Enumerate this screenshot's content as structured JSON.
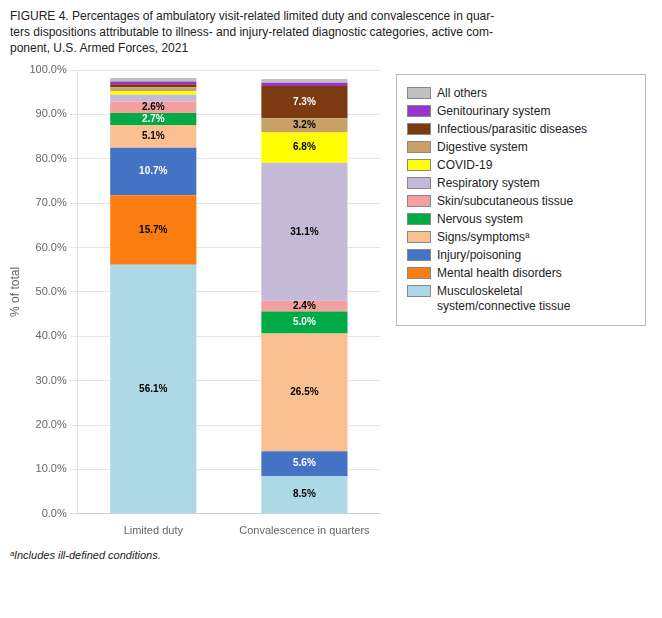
{
  "chart_data": {
    "type": "bar",
    "title": [
      "FIGURE 4. Percentages of ambulatory visit-related limited duty and convalescence in quar-",
      "ters dispositions attributable to illness- and injury-related diagnostic categories, active com-",
      "ponent, U.S. Armed Forces, 2021"
    ],
    "ylabel": "% of total",
    "footnote": "ᵃIncludes ill-defined conditions.",
    "categories": [
      "Limited duty",
      "Convalescence in quarters"
    ],
    "series": [
      {
        "name": "Musculoskeletal\nsystem/connective tissue",
        "color": "#add8e6",
        "values": [
          56.1,
          8.5
        ],
        "value_labels": [
          "56.1%",
          "8.5%"
        ]
      },
      {
        "name": "Mental health disorders",
        "color": "#f97d10",
        "values": [
          15.7,
          0.0
        ],
        "value_labels": [
          "15.7%",
          null
        ]
      },
      {
        "name": "Injury/poisoning",
        "color": "#4472c4",
        "values": [
          10.7,
          5.6
        ],
        "value_labels": [
          "10.7%",
          "5.6%"
        ]
      },
      {
        "name": "Signs/symptomsᵃ",
        "color": "#fac090",
        "values": [
          5.1,
          26.5
        ],
        "value_labels": [
          "5.1%",
          "26.5%"
        ]
      },
      {
        "name": "Nervous system",
        "color": "#00aa44",
        "values": [
          2.7,
          5.0
        ],
        "value_labels": [
          "2.7%",
          "5.0%"
        ]
      },
      {
        "name": "Skin/subcutaneous tissue",
        "color": "#f4a0a0",
        "values": [
          2.6,
          2.4
        ],
        "value_labels": [
          "2.6%",
          "2.4%"
        ]
      },
      {
        "name": "Respiratory system",
        "color": "#c5b9d8",
        "values": [
          1.5,
          31.1
        ],
        "value_labels": [
          null,
          "31.1%"
        ]
      },
      {
        "name": "COVID-19",
        "color": "#ffff00",
        "values": [
          0.8,
          6.8
        ],
        "value_labels": [
          null,
          "6.8%"
        ]
      },
      {
        "name": "Digestive system",
        "color": "#c8a068",
        "values": [
          0.9,
          3.2
        ],
        "value_labels": [
          null,
          "3.2%"
        ]
      },
      {
        "name": "Infectious/parasitic diseases",
        "color": "#7b3a10",
        "values": [
          0.7,
          7.3
        ],
        "value_labels": [
          null,
          "7.3%"
        ]
      },
      {
        "name": "Genitourinary system",
        "color": "#9933cc",
        "values": [
          0.6,
          0.7
        ],
        "value_labels": [
          null,
          null
        ]
      },
      {
        "name": "All others",
        "color": "#c0c0c0",
        "values": [
          0.8,
          0.9
        ],
        "value_labels": [
          null,
          null
        ]
      }
    ],
    "stacked": true,
    "data_labels": true,
    "grid": true,
    "legend": "right",
    "ylim": [
      0,
      100
    ],
    "yticks": [
      {
        "value": 0,
        "label": "0.0%"
      },
      {
        "value": 10,
        "label": "10.0%"
      },
      {
        "value": 20,
        "label": "20.0%"
      },
      {
        "value": 30,
        "label": "30.0%"
      },
      {
        "value": 40,
        "label": "40.0%"
      },
      {
        "value": 50,
        "label": "50.0%"
      },
      {
        "value": 60,
        "label": "60.0%"
      },
      {
        "value": 70,
        "label": "70.0%"
      },
      {
        "value": 80,
        "label": "80.0%"
      },
      {
        "value": 90,
        "label": "90.0%"
      },
      {
        "value": 100,
        "label": "100.0%"
      }
    ]
  }
}
